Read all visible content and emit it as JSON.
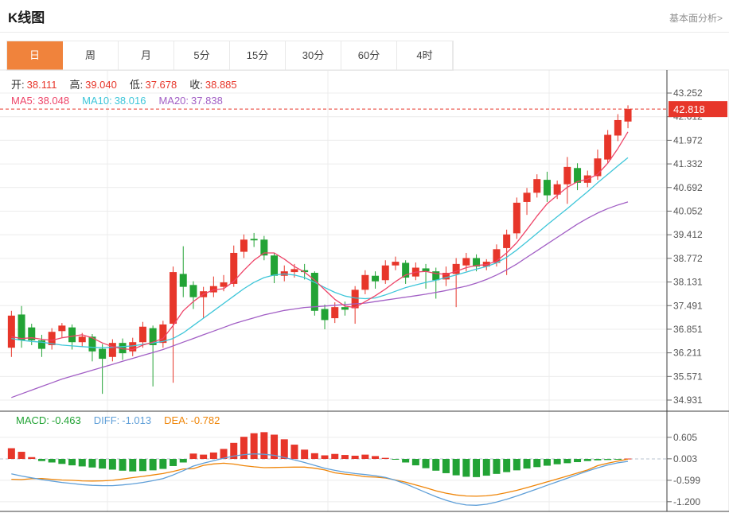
{
  "header": {
    "title": "K线图",
    "link": "基本面分析>"
  },
  "tabs": [
    {
      "label": "日",
      "active": true
    },
    {
      "label": "周",
      "active": false
    },
    {
      "label": "月",
      "active": false
    },
    {
      "label": "5分",
      "active": false
    },
    {
      "label": "15分",
      "active": false
    },
    {
      "label": "30分",
      "active": false
    },
    {
      "label": "60分",
      "active": false
    },
    {
      "label": "4时",
      "active": false
    }
  ],
  "overlay": {
    "ohlc": [
      {
        "label": "开:",
        "value": "38.111",
        "color": "#e7362a"
      },
      {
        "label": "高:",
        "value": "39.040",
        "color": "#e7362a"
      },
      {
        "label": "低:",
        "value": "37.678",
        "color": "#e7362a"
      },
      {
        "label": "收:",
        "value": "38.885",
        "color": "#e7362a"
      }
    ],
    "ma": [
      {
        "label": "MA5:",
        "value": "38.048",
        "color": "#ee4468"
      },
      {
        "label": "MA10:",
        "value": "38.016",
        "color": "#3ec6d9"
      },
      {
        "label": "MA20:",
        "value": "37.838",
        "color": "#a25fc5"
      }
    ],
    "macd": [
      {
        "label": "MACD:",
        "value": "-0.463",
        "color": "#22a335"
      },
      {
        "label": "DIFF:",
        "value": "-1.013",
        "color": "#5f9fd8"
      },
      {
        "label": "DEA:",
        "value": "-0.782",
        "color": "#ef8508"
      }
    ]
  },
  "chart_data": {
    "type": "candlestick+macd",
    "title": "K线图 daily candlestick chart with MA5/MA10/MA20 overlays and MACD sub-panel",
    "last_price": "42.818",
    "price_axis": {
      "ticks": [
        43.252,
        42.612,
        41.972,
        41.332,
        40.692,
        40.052,
        39.412,
        38.772,
        38.131,
        37.491,
        36.851,
        36.211,
        35.571,
        34.931
      ],
      "max": 43.252,
      "min": 34.931
    },
    "macd_axis": {
      "ticks": [
        0.605,
        0.003,
        -0.599,
        -1.2
      ]
    },
    "candles_format": "[open, high, low, close] — red rises, green falls (CN convention)",
    "candles": [
      [
        36.35,
        37.35,
        36.1,
        37.22
      ],
      [
        37.25,
        37.48,
        36.35,
        36.55
      ],
      [
        36.9,
        37.0,
        36.42,
        36.55
      ],
      [
        36.55,
        36.7,
        36.1,
        36.32
      ],
      [
        36.42,
        36.88,
        36.3,
        36.78
      ],
      [
        36.8,
        37.02,
        36.62,
        36.95
      ],
      [
        36.9,
        36.98,
        36.3,
        36.5
      ],
      [
        36.5,
        36.75,
        36.38,
        36.65
      ],
      [
        36.65,
        36.72,
        35.98,
        36.25
      ],
      [
        36.32,
        36.45,
        35.1,
        36.05
      ],
      [
        36.1,
        36.58,
        35.98,
        36.48
      ],
      [
        36.48,
        36.6,
        36.02,
        36.2
      ],
      [
        36.25,
        36.62,
        36.12,
        36.5
      ],
      [
        36.5,
        37.05,
        36.35,
        36.92
      ],
      [
        36.88,
        36.95,
        35.3,
        36.42
      ],
      [
        36.48,
        37.08,
        36.35,
        36.98
      ],
      [
        37.0,
        38.55,
        35.4,
        38.4
      ],
      [
        38.35,
        39.1,
        37.72,
        38.0
      ],
      [
        38.05,
        38.15,
        37.4,
        37.72
      ],
      [
        37.72,
        38.0,
        37.15,
        37.88
      ],
      [
        37.85,
        38.28,
        37.72,
        38.02
      ],
      [
        38.0,
        38.32,
        37.88,
        38.12
      ],
      [
        38.08,
        39.12,
        38.0,
        38.92
      ],
      [
        38.95,
        39.42,
        38.78,
        39.28
      ],
      [
        39.3,
        39.46,
        39.08,
        39.26
      ],
      [
        39.28,
        39.38,
        38.72,
        38.85
      ],
      [
        38.85,
        38.92,
        38.1,
        38.3
      ],
      [
        38.3,
        38.58,
        38.15,
        38.42
      ],
      [
        38.4,
        38.62,
        38.25,
        38.48
      ],
      [
        38.45,
        38.62,
        38.2,
        38.4
      ],
      [
        38.38,
        38.42,
        37.22,
        37.35
      ],
      [
        37.4,
        37.52,
        36.85,
        37.1
      ],
      [
        37.15,
        37.58,
        37.02,
        37.45
      ],
      [
        37.45,
        37.6,
        37.22,
        37.38
      ],
      [
        37.42,
        38.02,
        37.0,
        37.92
      ],
      [
        37.92,
        38.45,
        37.8,
        38.32
      ],
      [
        38.3,
        38.42,
        37.95,
        38.15
      ],
      [
        38.18,
        38.72,
        38.08,
        38.58
      ],
      [
        38.58,
        38.82,
        38.45,
        38.68
      ],
      [
        38.65,
        38.72,
        38.08,
        38.25
      ],
      [
        38.28,
        38.66,
        38.18,
        38.52
      ],
      [
        38.5,
        38.62,
        37.95,
        38.42
      ],
      [
        38.42,
        38.52,
        37.68,
        38.18
      ],
      [
        38.2,
        38.55,
        38.02,
        38.38
      ],
      [
        38.35,
        38.78,
        37.45,
        38.62
      ],
      [
        38.58,
        38.92,
        38.42,
        38.78
      ],
      [
        38.78,
        38.88,
        38.42,
        38.55
      ],
      [
        38.55,
        38.75,
        38.45,
        38.68
      ],
      [
        38.65,
        39.15,
        38.55,
        39.02
      ],
      [
        39.05,
        39.55,
        38.32,
        39.42
      ],
      [
        39.45,
        40.42,
        39.3,
        40.28
      ],
      [
        40.3,
        40.68,
        39.95,
        40.55
      ],
      [
        40.55,
        41.05,
        40.42,
        40.92
      ],
      [
        40.9,
        41.12,
        40.3,
        40.48
      ],
      [
        40.5,
        40.88,
        40.38,
        40.78
      ],
      [
        40.78,
        41.52,
        40.25,
        41.25
      ],
      [
        41.22,
        41.35,
        40.62,
        40.82
      ],
      [
        40.82,
        41.15,
        40.7,
        41.02
      ],
      [
        41.0,
        41.72,
        40.9,
        41.48
      ],
      [
        41.45,
        42.25,
        41.35,
        42.12
      ],
      [
        42.1,
        42.68,
        41.95,
        42.52
      ],
      [
        42.48,
        42.92,
        42.3,
        42.818
      ]
    ],
    "ma5": [
      36.65,
      36.6,
      36.62,
      36.58,
      36.55,
      36.62,
      36.66,
      36.7,
      36.62,
      36.48,
      36.38,
      36.32,
      36.3,
      36.42,
      36.5,
      36.6,
      36.95,
      37.35,
      37.6,
      37.8,
      37.92,
      37.95,
      38.15,
      38.45,
      38.72,
      38.92,
      38.92,
      38.75,
      38.55,
      38.4,
      38.18,
      37.92,
      37.66,
      37.48,
      37.44,
      37.6,
      37.76,
      37.94,
      38.14,
      38.32,
      38.4,
      38.42,
      38.36,
      38.34,
      38.42,
      38.52,
      38.58,
      38.6,
      38.7,
      38.92,
      39.2,
      39.55,
      39.92,
      40.25,
      40.48,
      40.7,
      40.85,
      40.92,
      41.05,
      41.35,
      41.75,
      42.2
    ],
    "ma10": [
      36.6,
      36.55,
      36.52,
      36.5,
      36.46,
      36.42,
      36.4,
      36.38,
      36.36,
      36.35,
      36.36,
      36.38,
      36.4,
      36.44,
      36.48,
      36.52,
      36.6,
      36.75,
      36.95,
      37.15,
      37.35,
      37.55,
      37.75,
      37.95,
      38.12,
      38.25,
      38.32,
      38.35,
      38.32,
      38.25,
      38.12,
      37.98,
      37.85,
      37.75,
      37.7,
      37.68,
      37.7,
      37.78,
      37.88,
      37.98,
      38.05,
      38.12,
      38.18,
      38.25,
      38.32,
      38.4,
      38.48,
      38.55,
      38.65,
      38.8,
      39.0,
      39.22,
      39.45,
      39.68,
      39.9,
      40.12,
      40.35,
      40.58,
      40.82,
      41.05,
      41.28,
      41.5
    ],
    "ma20": [
      35.0,
      35.1,
      35.2,
      35.3,
      35.4,
      35.5,
      35.58,
      35.66,
      35.74,
      35.82,
      35.9,
      35.98,
      36.06,
      36.14,
      36.22,
      36.3,
      36.4,
      36.5,
      36.6,
      36.7,
      36.8,
      36.9,
      37.0,
      37.08,
      37.16,
      37.24,
      37.3,
      37.36,
      37.4,
      37.44,
      37.46,
      37.48,
      37.5,
      37.52,
      37.54,
      37.56,
      37.6,
      37.64,
      37.68,
      37.72,
      37.76,
      37.8,
      37.85,
      37.9,
      37.96,
      38.02,
      38.1,
      38.2,
      38.32,
      38.46,
      38.62,
      38.8,
      38.98,
      39.16,
      39.34,
      39.52,
      39.7,
      39.86,
      40.0,
      40.12,
      40.22,
      40.3
    ],
    "macd_hist": [
      0.3,
      0.2,
      0.05,
      -0.06,
      -0.1,
      -0.14,
      -0.18,
      -0.21,
      -0.24,
      -0.27,
      -0.3,
      -0.33,
      -0.35,
      -0.34,
      -0.32,
      -0.28,
      -0.2,
      -0.1,
      0.15,
      0.12,
      0.18,
      0.28,
      0.45,
      0.62,
      0.72,
      0.75,
      0.68,
      0.55,
      0.4,
      0.26,
      0.16,
      0.1,
      0.14,
      0.11,
      0.09,
      0.12,
      0.08,
      0.03,
      -0.02,
      -0.1,
      -0.18,
      -0.26,
      -0.33,
      -0.4,
      -0.46,
      -0.5,
      -0.51,
      -0.47,
      -0.42,
      -0.37,
      -0.32,
      -0.27,
      -0.23,
      -0.19,
      -0.15,
      -0.12,
      -0.09,
      -0.06,
      -0.04,
      -0.03,
      -0.02,
      0.01
    ],
    "diff": [
      -0.42,
      -0.48,
      -0.53,
      -0.58,
      -0.62,
      -0.66,
      -0.69,
      -0.72,
      -0.74,
      -0.75,
      -0.75,
      -0.73,
      -0.7,
      -0.66,
      -0.61,
      -0.55,
      -0.45,
      -0.33,
      -0.2,
      -0.12,
      -0.05,
      0.02,
      0.08,
      0.12,
      0.14,
      0.13,
      0.1,
      0.04,
      -0.03,
      -0.1,
      -0.18,
      -0.26,
      -0.32,
      -0.37,
      -0.41,
      -0.44,
      -0.47,
      -0.52,
      -0.6,
      -0.7,
      -0.82,
      -0.94,
      -1.06,
      -1.16,
      -1.24,
      -1.29,
      -1.3,
      -1.27,
      -1.21,
      -1.13,
      -1.04,
      -0.94,
      -0.84,
      -0.74,
      -0.64,
      -0.54,
      -0.44,
      -0.34,
      -0.25,
      -0.17,
      -0.11,
      -0.07
    ],
    "dea": [
      -0.57,
      -0.58,
      -0.555,
      -0.55,
      -0.57,
      -0.59,
      -0.6,
      -0.615,
      -0.62,
      -0.615,
      -0.6,
      -0.565,
      -0.525,
      -0.49,
      -0.45,
      -0.41,
      -0.35,
      -0.28,
      -0.275,
      -0.18,
      -0.14,
      -0.12,
      -0.145,
      -0.19,
      -0.22,
      -0.245,
      -0.24,
      -0.235,
      -0.23,
      -0.23,
      -0.26,
      -0.31,
      -0.39,
      -0.425,
      -0.455,
      -0.5,
      -0.51,
      -0.535,
      -0.59,
      -0.65,
      -0.73,
      -0.81,
      -0.895,
      -0.96,
      -1.01,
      -1.04,
      -1.045,
      -1.035,
      -1.0,
      -0.945,
      -0.88,
      -0.805,
      -0.725,
      -0.645,
      -0.565,
      -0.48,
      -0.395,
      -0.31,
      -0.19,
      -0.12,
      -0.06,
      -0.01
    ],
    "colors": {
      "up": "#e7362a",
      "down": "#22a335",
      "ma5": "#ee4468",
      "ma10": "#3ec6d9",
      "ma20": "#a25fc5",
      "diff": "#5f9fd8",
      "dea": "#ef8508",
      "last_price_line": "#e7362a",
      "last_price_label_bg": "#e7362a",
      "last_price_label_text": "#ffffff",
      "grid": "#ececec",
      "frame_dark": "#3c3c3c",
      "frame_light": "#e3e3e3",
      "axis_text": "#555555",
      "zero_dash": "#b9c3cf",
      "tab_active_bg": "#f0833c"
    },
    "legend": [
      "MA5",
      "MA10",
      "MA20",
      "MACD",
      "DIFF",
      "DEA"
    ],
    "grid": true
  }
}
